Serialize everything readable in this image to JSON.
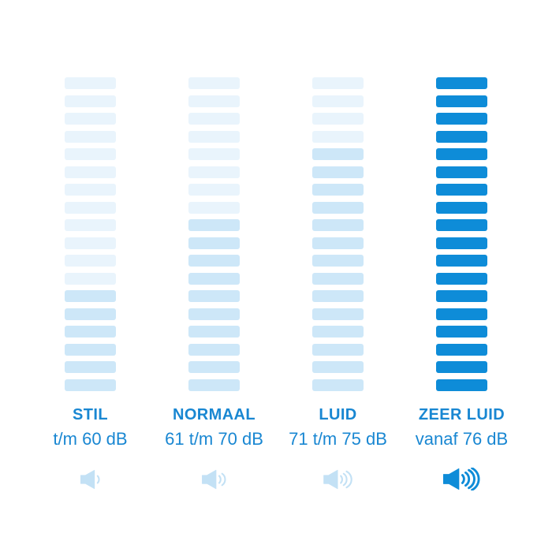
{
  "colors": {
    "background": "#ffffff",
    "label_blue": "#1987d2",
    "bar_inactive_light": "#e9f4fc",
    "bar_active_light": "#cde7f8",
    "bar_solid": "#0e8cd8",
    "icon_light": "#c3e1f5",
    "icon_solid": "#0e8cd8"
  },
  "chart_data": {
    "type": "bar",
    "title": "",
    "categories": [
      "STIL",
      "NORMAAL",
      "LUID",
      "ZEER LUID"
    ],
    "ranges": [
      "t/m 60 dB",
      "61 t/m 70 dB",
      "71 t/m 75 dB",
      "vanaf 76 dB"
    ],
    "segments_total": 18,
    "segments_active": [
      6,
      10,
      14,
      18
    ],
    "speaker_wave_arcs": [
      1,
      2,
      3,
      4
    ],
    "columns": [
      {
        "title": "STIL",
        "range": "t/m 60 dB",
        "segments_total": 18,
        "segments_active": 6,
        "inactive_color": "#e9f4fc",
        "active_color": "#cde7f8",
        "icon_color": "#c3e1f5",
        "wave_arcs": 1
      },
      {
        "title": "NORMAAL",
        "range": "61 t/m 70 dB",
        "segments_total": 18,
        "segments_active": 10,
        "inactive_color": "#e9f4fc",
        "active_color": "#cde7f8",
        "icon_color": "#c3e1f5",
        "wave_arcs": 2
      },
      {
        "title": "LUID",
        "range": "71 t/m 75 dB",
        "segments_total": 18,
        "segments_active": 14,
        "inactive_color": "#e9f4fc",
        "active_color": "#cde7f8",
        "icon_color": "#c3e1f5",
        "wave_arcs": 3
      },
      {
        "title": "ZEER LUID",
        "range": "vanaf 76 dB",
        "segments_total": 18,
        "segments_active": 18,
        "inactive_color": "#0e8cd8",
        "active_color": "#0e8cd8",
        "icon_color": "#0e8cd8",
        "wave_arcs": 4
      }
    ]
  }
}
